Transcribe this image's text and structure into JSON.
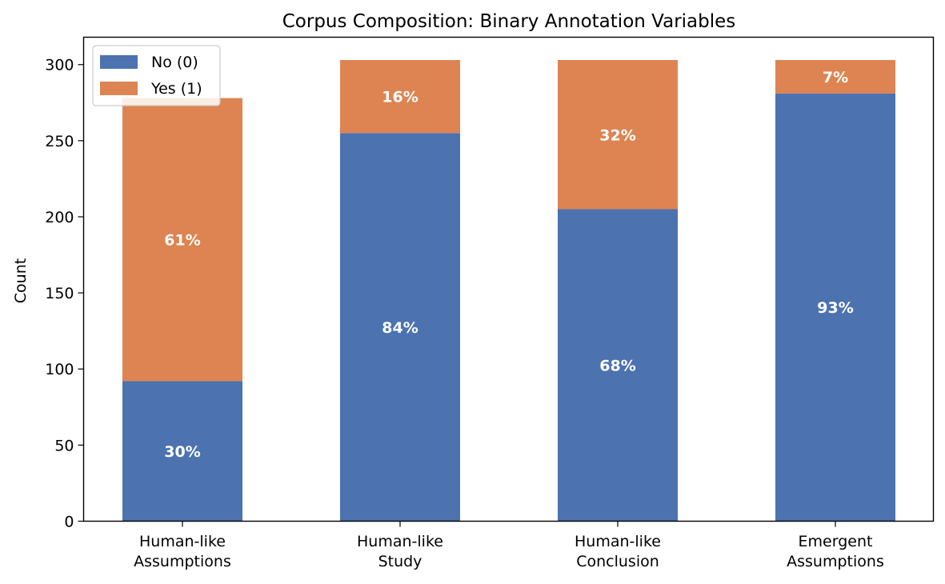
{
  "chart_data": {
    "type": "bar",
    "stacked": true,
    "title": "Corpus Composition: Binary Annotation Variables",
    "xlabel": "",
    "ylabel": "Count",
    "ylim": [
      0,
      318
    ],
    "yticks": [
      0,
      50,
      100,
      150,
      200,
      250,
      300
    ],
    "categories": [
      [
        "Human-like",
        "Assumptions"
      ],
      [
        "Human-like",
        "Study"
      ],
      [
        "Human-like",
        "Conclusion"
      ],
      [
        "Emergent",
        "Assumptions"
      ]
    ],
    "series": [
      {
        "name": "No (0)",
        "color": "#4c72b0",
        "values": [
          92,
          255,
          205,
          281
        ],
        "labels": [
          "30%",
          "84%",
          "68%",
          "93%"
        ]
      },
      {
        "name": "Yes (1)",
        "color": "#dd8452",
        "values": [
          186,
          48,
          98,
          22
        ],
        "labels": [
          "61%",
          "16%",
          "32%",
          "7%"
        ]
      }
    ],
    "legend": {
      "position": "upper-left"
    },
    "grid": false
  }
}
